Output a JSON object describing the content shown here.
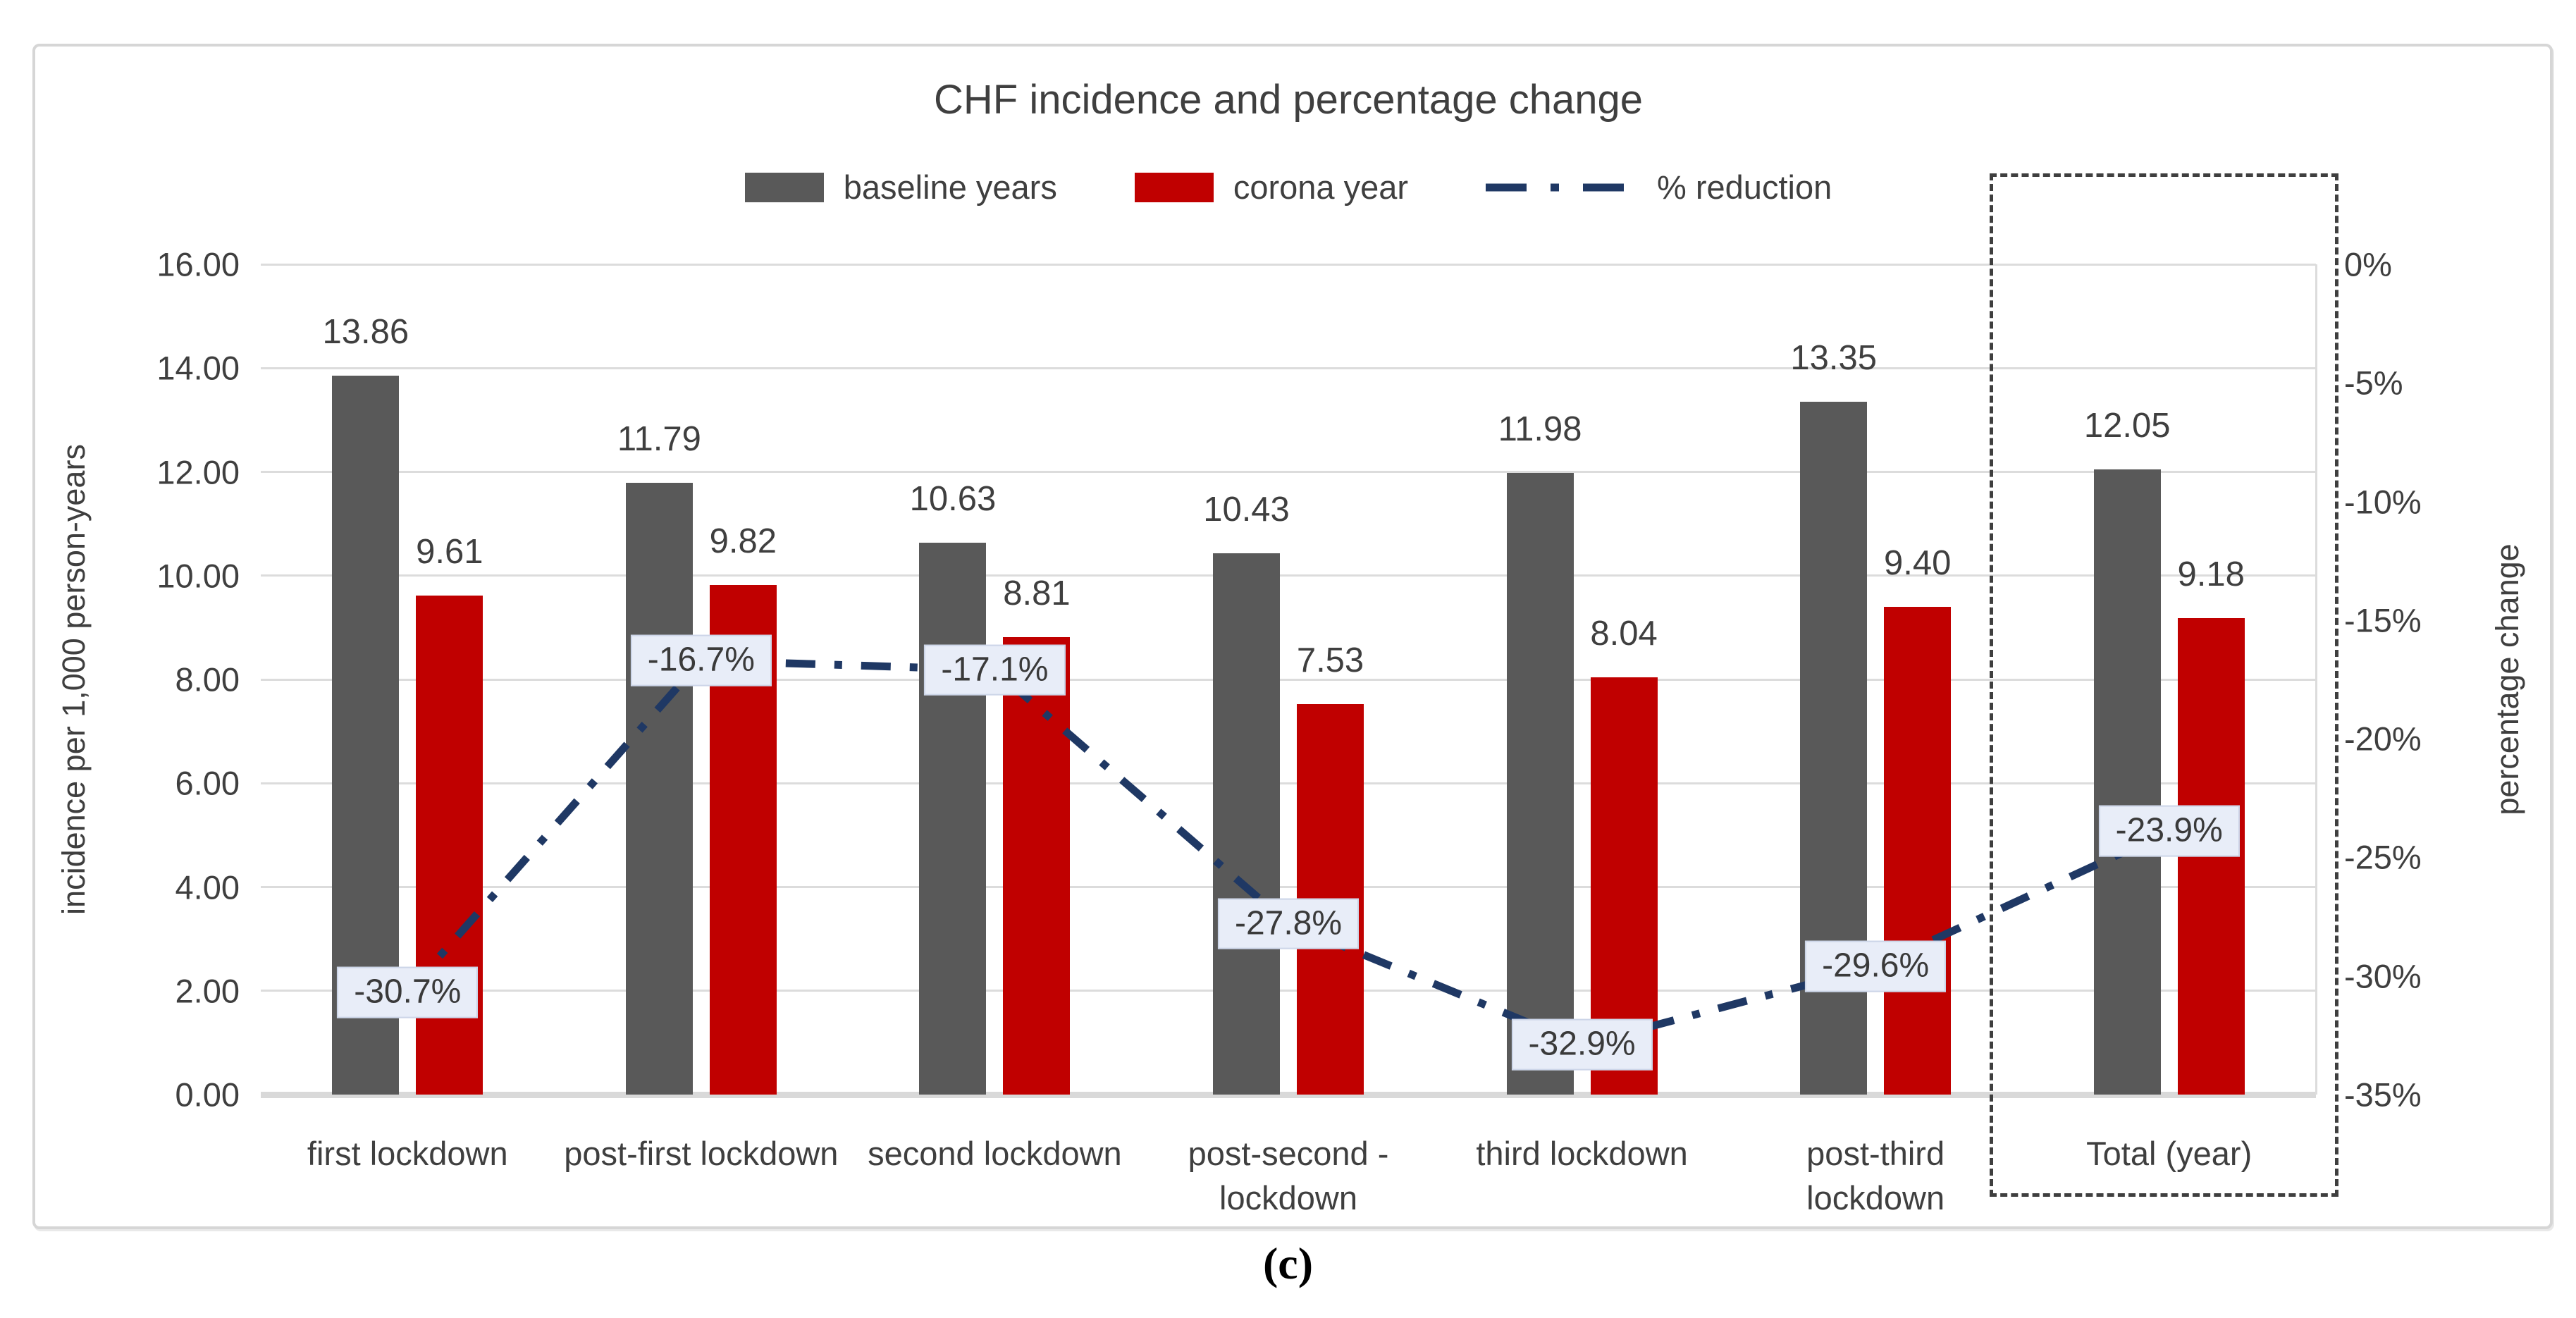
{
  "figure": {
    "caption": "(c)"
  },
  "chart_data": {
    "type": "combo-bar-line",
    "title": "CHF incidence and percentage change",
    "categories": [
      "first lockdown",
      "post-first lockdown",
      "second lockdown",
      "post-second -\nlockdown",
      "third lockdown",
      "post-third\nlockdown",
      "Total (year)"
    ],
    "series": [
      {
        "name": "baseline years",
        "type": "bar",
        "color": "#595959",
        "values": [
          13.86,
          11.79,
          10.63,
          10.43,
          11.98,
          13.35,
          12.05
        ]
      },
      {
        "name": "corona year",
        "type": "bar",
        "color": "#c00000",
        "values": [
          9.61,
          9.82,
          8.81,
          7.53,
          8.04,
          9.4,
          9.18
        ]
      },
      {
        "name": "% reduction",
        "type": "line",
        "color": "#1f3864",
        "values": [
          -30.7,
          -16.7,
          -17.1,
          -27.8,
          -32.9,
          -29.6,
          -23.9
        ],
        "point_labels": [
          "-30.7%",
          "-16.7%",
          "-17.1%",
          "-27.8%",
          "-32.9%",
          "-29.6%",
          "-23.9%"
        ]
      }
    ],
    "left_axis": {
      "title": "incidence per 1,000 person-years",
      "min": 0,
      "max": 16,
      "ticks": [
        "16.00",
        "14.00",
        "12.00",
        "10.00",
        "8.00",
        "6.00",
        "4.00",
        "2.00",
        "0.00"
      ]
    },
    "right_axis": {
      "title": "percentage change",
      "min": -35,
      "max": 0,
      "ticks": [
        "0%",
        "-5%",
        "-10%",
        "-15%",
        "-20%",
        "-25%",
        "-30%",
        "-35%"
      ]
    },
    "legend_position": "top",
    "grid": true,
    "highlight": {
      "category": "Total (year)",
      "style": "dashed-box"
    },
    "colors": {
      "baseline_bar": "#595959",
      "corona_bar": "#c00000",
      "reduction_line": "#1f3864",
      "grid": "#dcdcdc",
      "label_box_fill": "#e8edf8",
      "label_box_border": "#ccd5e8",
      "text": "#3f3f3f"
    }
  }
}
